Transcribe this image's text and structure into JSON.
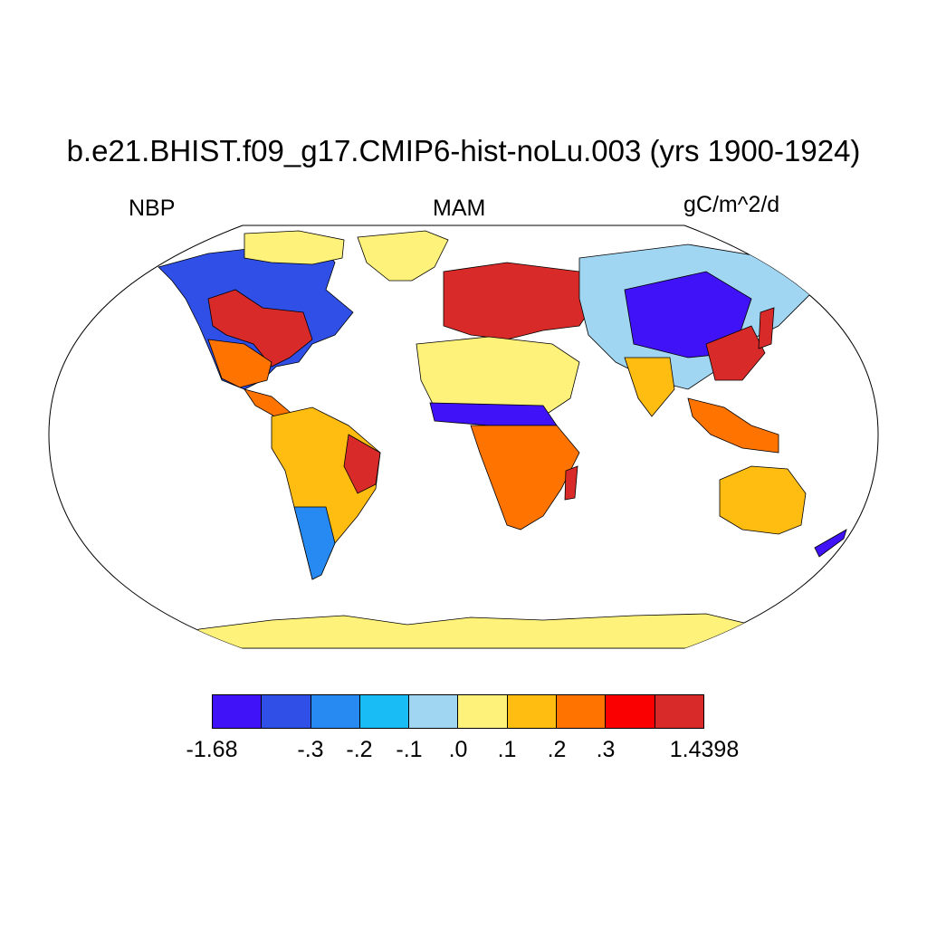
{
  "title": "b.e21.BHIST.f09_g17.CMIP6-hist-noLu.003 (yrs 1900-1924)",
  "left_label": "NBP",
  "center_label": "MAM",
  "right_label": "gC/m^2/d",
  "projection": "Robinson",
  "colorbar": {
    "colors": [
      "#3f12f7",
      "#2f4fe6",
      "#2789f2",
      "#19bcf5",
      "#a1d6f2",
      "#fff27a",
      "#ffbc11",
      "#ff7300",
      "#fb0000",
      "#d92a2a"
    ],
    "labels": [
      "-1.68",
      "-.3",
      "-.2",
      "-.1",
      ".0",
      ".1",
      ".2",
      ".3",
      "1.4398"
    ]
  }
}
